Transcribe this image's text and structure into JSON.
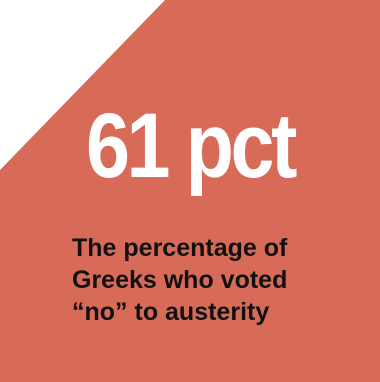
{
  "stat": {
    "figure": "61 pct",
    "caption_lines": [
      "The percentage of",
      "Greeks who voted",
      "“no” to austerity"
    ]
  },
  "colors": {
    "tile": "#d86b58",
    "figure": "#ffffff",
    "caption": "#111111",
    "background": "#ffffff"
  }
}
